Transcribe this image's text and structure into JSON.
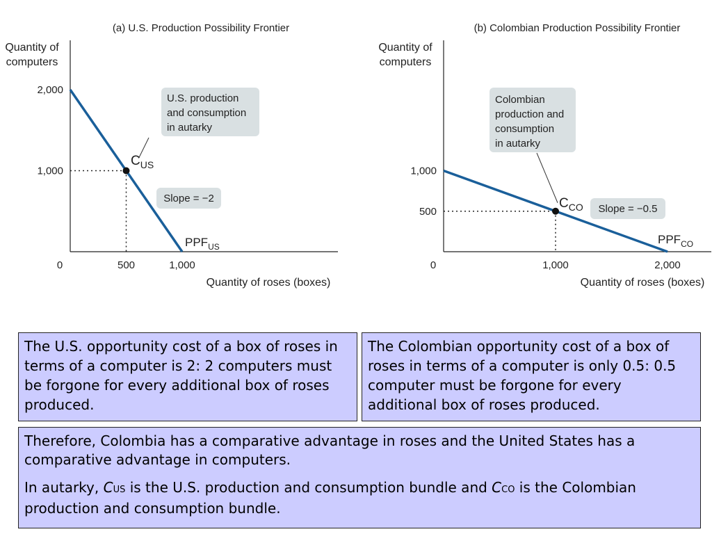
{
  "colors": {
    "line": "#1a5f9a",
    "callout": "#d9e0e2",
    "note_bg": "#ccccff",
    "axis": "#222222"
  },
  "chart_data": [
    {
      "type": "line",
      "title": "(a) U.S. Production Possibility Frontier",
      "ylabel_line1": "Quantity of",
      "ylabel_line2": "computers",
      "xlabel": "Quantity of roses (boxes)",
      "origin_label": "0",
      "xlim": [
        0,
        2000
      ],
      "ylim": [
        0,
        2000
      ],
      "x_ticks": [
        {
          "value": 500,
          "label": "500"
        },
        {
          "value": 1000,
          "label": "1,000"
        }
      ],
      "y_ticks": [
        {
          "value": 1000,
          "label": "1,000"
        },
        {
          "value": 2000,
          "label": "2,000"
        }
      ],
      "series": [
        {
          "name_main": "PPF",
          "name_sub": "US",
          "points": [
            [
              0,
              2000
            ],
            [
              1000,
              0
            ]
          ]
        }
      ],
      "point": {
        "x": 500,
        "y": 1000,
        "label_main": "C",
        "label_sub": "US"
      },
      "callout_lines": [
        "U.S. production",
        "and consumption",
        "in autarky"
      ],
      "slope_label": "Slope = −2"
    },
    {
      "type": "line",
      "title": "(b) Colombian Production Possibility Frontier",
      "ylabel_line1": "Quantity of",
      "ylabel_line2": "computers",
      "xlabel": "Quantity of roses (boxes)",
      "origin_label": "0",
      "xlim": [
        0,
        2000
      ],
      "ylim": [
        0,
        2000
      ],
      "x_ticks": [
        {
          "value": 1000,
          "label": "1,000"
        },
        {
          "value": 2000,
          "label": "2,000"
        }
      ],
      "y_ticks": [
        {
          "value": 500,
          "label": "500"
        },
        {
          "value": 1000,
          "label": "1,000"
        }
      ],
      "series": [
        {
          "name_main": "PPF",
          "name_sub": "CO",
          "points": [
            [
              0,
              1000
            ],
            [
              2000,
              0
            ]
          ]
        }
      ],
      "point": {
        "x": 1000,
        "y": 500,
        "label_main": "C",
        "label_sub": "CO"
      },
      "callout_lines": [
        "Colombian",
        "production and",
        "consumption",
        "in autarky"
      ],
      "slope_label": "Slope = −0.5"
    }
  ],
  "notes": {
    "us": "The U.S. opportunity cost of a box of roses in terms of a computer is 2: 2 computers must be forgone for every additional box of roses produced.",
    "co": "The Colombian opportunity cost of a box of roses in terms of a computer is only 0.5: 0.5 computer must be forgone for every additional box of roses produced.",
    "conclusion": "Therefore, Colombia has a comparative advantage in roses and the United States has a comparative advantage in computers.",
    "autarky": {
      "part1": "In autarky, ",
      "cus_main": "C",
      "cus_sub": "US",
      "part2": " is the U.S. production and consumption bundle and ",
      "cco_main": "C",
      "cco_sub": "CO",
      "part3": " is the Colombian production and consumption bundle."
    }
  }
}
